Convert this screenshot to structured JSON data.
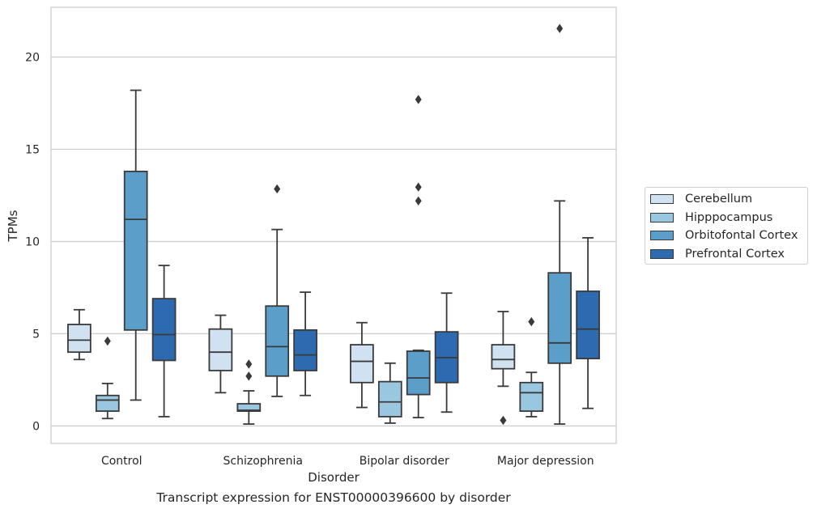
{
  "chart_data": {
    "type": "box",
    "caption": "Transcript expression for ENST00000396600 by disorder",
    "xlabel": "Disorder",
    "ylabel": "TPMs",
    "ylim": [
      -0.95,
      22.7
    ],
    "yticks": [
      0,
      5,
      10,
      15,
      20
    ],
    "grid": "horizontal",
    "legend_position": "right",
    "categories": [
      "Control",
      "Schizophrenia",
      "Bipolar disorder",
      "Major depression"
    ],
    "series": [
      {
        "name": "Cerebellum",
        "color": "#d0e2f2",
        "boxes": [
          {
            "min": 3.6,
            "q1": 4.0,
            "median": 4.65,
            "q3": 5.5,
            "max": 6.3,
            "outliers": []
          },
          {
            "min": 1.8,
            "q1": 3.0,
            "median": 4.0,
            "q3": 5.25,
            "max": 6.0,
            "outliers": []
          },
          {
            "min": 1.0,
            "q1": 2.35,
            "median": 3.5,
            "q3": 4.4,
            "max": 5.6,
            "outliers": []
          },
          {
            "min": 2.15,
            "q1": 3.1,
            "median": 3.6,
            "q3": 4.4,
            "max": 6.2,
            "outliers": [
              0.3
            ]
          }
        ]
      },
      {
        "name": "Hipppocampus",
        "color": "#9ac7e0",
        "boxes": [
          {
            "min": 0.4,
            "q1": 0.8,
            "median": 1.4,
            "q3": 1.65,
            "max": 2.3,
            "outliers": [
              4.6
            ]
          },
          {
            "min": 0.1,
            "q1": 0.8,
            "median": 0.85,
            "q3": 1.2,
            "max": 1.9,
            "outliers": [
              3.35,
              2.7
            ]
          },
          {
            "min": 0.15,
            "q1": 0.5,
            "median": 1.3,
            "q3": 2.4,
            "max": 3.4,
            "outliers": []
          },
          {
            "min": 0.5,
            "q1": 0.8,
            "median": 1.8,
            "q3": 2.35,
            "max": 2.9,
            "outliers": [
              5.65
            ]
          }
        ]
      },
      {
        "name": "Orbitofontal Cortex",
        "color": "#5a9ec9",
        "boxes": [
          {
            "min": 1.4,
            "q1": 5.2,
            "median": 11.2,
            "q3": 13.8,
            "max": 18.2,
            "outliers": []
          },
          {
            "min": 1.6,
            "q1": 2.7,
            "median": 4.3,
            "q3": 6.5,
            "max": 10.65,
            "outliers": [
              12.85
            ]
          },
          {
            "min": 0.45,
            "q1": 1.7,
            "median": 2.6,
            "q3": 4.05,
            "max": 4.1,
            "outliers": [
              17.7,
              12.95,
              12.2
            ]
          },
          {
            "min": 0.1,
            "q1": 3.4,
            "median": 4.5,
            "q3": 8.3,
            "max": 12.2,
            "outliers": [
              21.55
            ]
          }
        ]
      },
      {
        "name": "Prefrontal Cortex",
        "color": "#2d6ab0",
        "boxes": [
          {
            "min": 0.5,
            "q1": 3.55,
            "median": 4.95,
            "q3": 6.9,
            "max": 8.7,
            "outliers": []
          },
          {
            "min": 1.65,
            "q1": 3.0,
            "median": 3.85,
            "q3": 5.2,
            "max": 7.25,
            "outliers": []
          },
          {
            "min": 0.75,
            "q1": 2.35,
            "median": 3.7,
            "q3": 5.1,
            "max": 7.2,
            "outliers": []
          },
          {
            "min": 0.95,
            "q1": 3.65,
            "median": 5.25,
            "q3": 7.3,
            "max": 10.2,
            "outliers": []
          }
        ]
      }
    ]
  }
}
